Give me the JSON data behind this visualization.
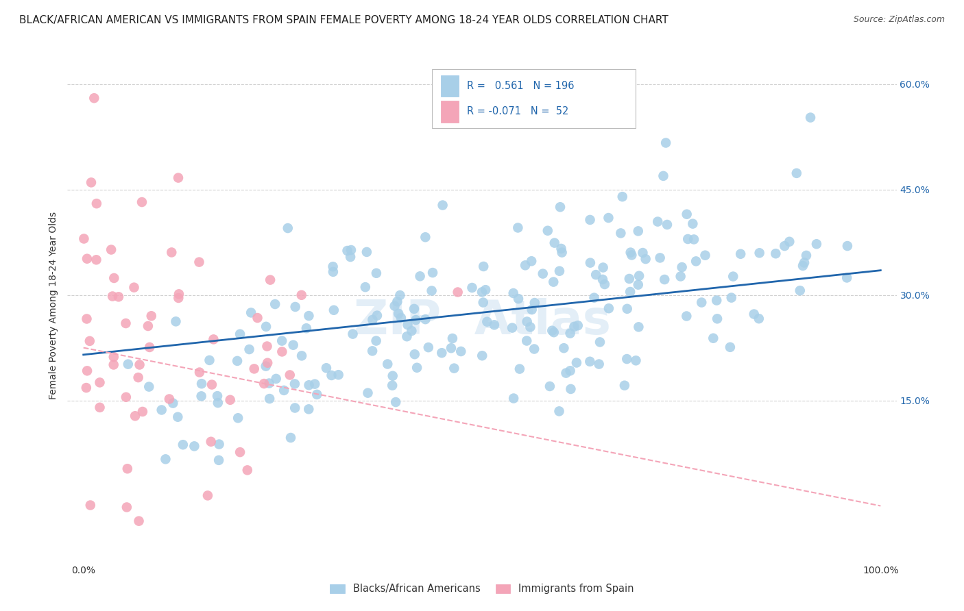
{
  "title": "BLACK/AFRICAN AMERICAN VS IMMIGRANTS FROM SPAIN FEMALE POVERTY AMONG 18-24 YEAR OLDS CORRELATION CHART",
  "source": "Source: ZipAtlas.com",
  "ylabel": "Female Poverty Among 18-24 Year Olds",
  "xlim": [
    -0.02,
    1.02
  ],
  "ylim": [
    -0.08,
    0.65
  ],
  "xtick_positions": [
    0.0,
    1.0
  ],
  "xtick_labels": [
    "0.0%",
    "100.0%"
  ],
  "ytick_values": [
    0.15,
    0.3,
    0.45,
    0.6
  ],
  "ytick_labels": [
    "15.0%",
    "30.0%",
    "45.0%",
    "60.0%"
  ],
  "legend1_r": "0.561",
  "legend1_n": "196",
  "legend2_r": "-0.071",
  "legend2_n": "52",
  "blue_scatter_color": "#a8cfe8",
  "pink_scatter_color": "#f4a5b8",
  "trend_blue_color": "#2166ac",
  "trend_pink_color": "#f4a5b8",
  "background_color": "#ffffff",
  "grid_color": "#cccccc",
  "title_fontsize": 11,
  "axis_label_fontsize": 10,
  "tick_fontsize": 10,
  "n_blue": 196,
  "n_pink": 52,
  "blue_trend_start_y": 0.215,
  "blue_trend_end_y": 0.335,
  "pink_trend_start_y": 0.225,
  "pink_trend_end_y": 0.0,
  "watermark_color": "#c8dff0",
  "right_tick_color": "#2166ac"
}
